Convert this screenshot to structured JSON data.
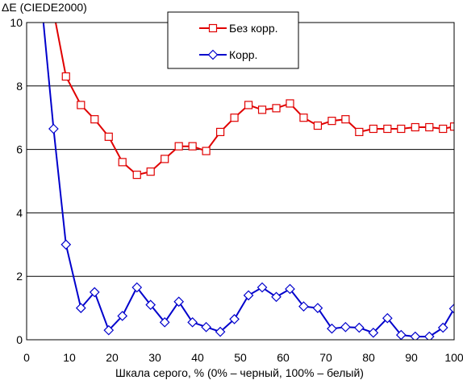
{
  "chart_data": {
    "type": "line",
    "ylabel": "ΔE (CIEDE2000)",
    "xlabel": "Шкала серого, % (0% – черный, 100% – белый)",
    "xlim": [
      0,
      100
    ],
    "ylim": [
      0,
      10
    ],
    "xticks": [
      0,
      10,
      20,
      30,
      40,
      50,
      60,
      70,
      80,
      90,
      100
    ],
    "yticks": [
      0,
      2,
      4,
      6,
      8,
      10
    ],
    "grid": "horizontal",
    "legend_position": "top-center",
    "series": [
      {
        "name": "Без корр.",
        "color": "#e00000",
        "marker": "square",
        "x": [
          6.5,
          9.2,
          12.7,
          15.9,
          19.2,
          22.4,
          25.8,
          29.0,
          32.3,
          35.6,
          38.8,
          42.0,
          45.3,
          48.6,
          51.9,
          55.1,
          58.4,
          61.6,
          64.8,
          68.1,
          71.4,
          74.6,
          77.8,
          81.1,
          84.4,
          87.6,
          90.9,
          94.2,
          97.4,
          100
        ],
        "y": [
          10.2,
          8.3,
          7.4,
          6.95,
          6.4,
          5.6,
          5.2,
          5.3,
          5.7,
          6.1,
          6.1,
          5.95,
          6.55,
          7.0,
          7.4,
          7.25,
          7.3,
          7.45,
          7.0,
          6.75,
          6.9,
          6.95,
          6.55,
          6.65,
          6.65,
          6.65,
          6.7,
          6.7,
          6.65,
          6.72
        ]
      },
      {
        "name": "Корр.",
        "color": "#0000cc",
        "marker": "diamond",
        "x": [
          3.8,
          6.3,
          9.2,
          12.7,
          15.9,
          19.2,
          22.4,
          25.8,
          29.0,
          32.3,
          35.6,
          38.8,
          42.0,
          45.3,
          48.6,
          51.9,
          55.1,
          58.4,
          61.6,
          64.8,
          68.1,
          71.4,
          74.6,
          77.8,
          81.1,
          84.4,
          87.6,
          90.9,
          94.2,
          97.4,
          100
        ],
        "y": [
          10.2,
          6.65,
          3.0,
          1.0,
          1.5,
          0.3,
          0.75,
          1.65,
          1.1,
          0.55,
          1.2,
          0.55,
          0.4,
          0.25,
          0.65,
          1.4,
          1.65,
          1.35,
          1.6,
          1.05,
          1.0,
          0.35,
          0.4,
          0.38,
          0.22,
          0.68,
          0.15,
          0.1,
          0.1,
          0.38,
          0.98
        ]
      }
    ]
  }
}
